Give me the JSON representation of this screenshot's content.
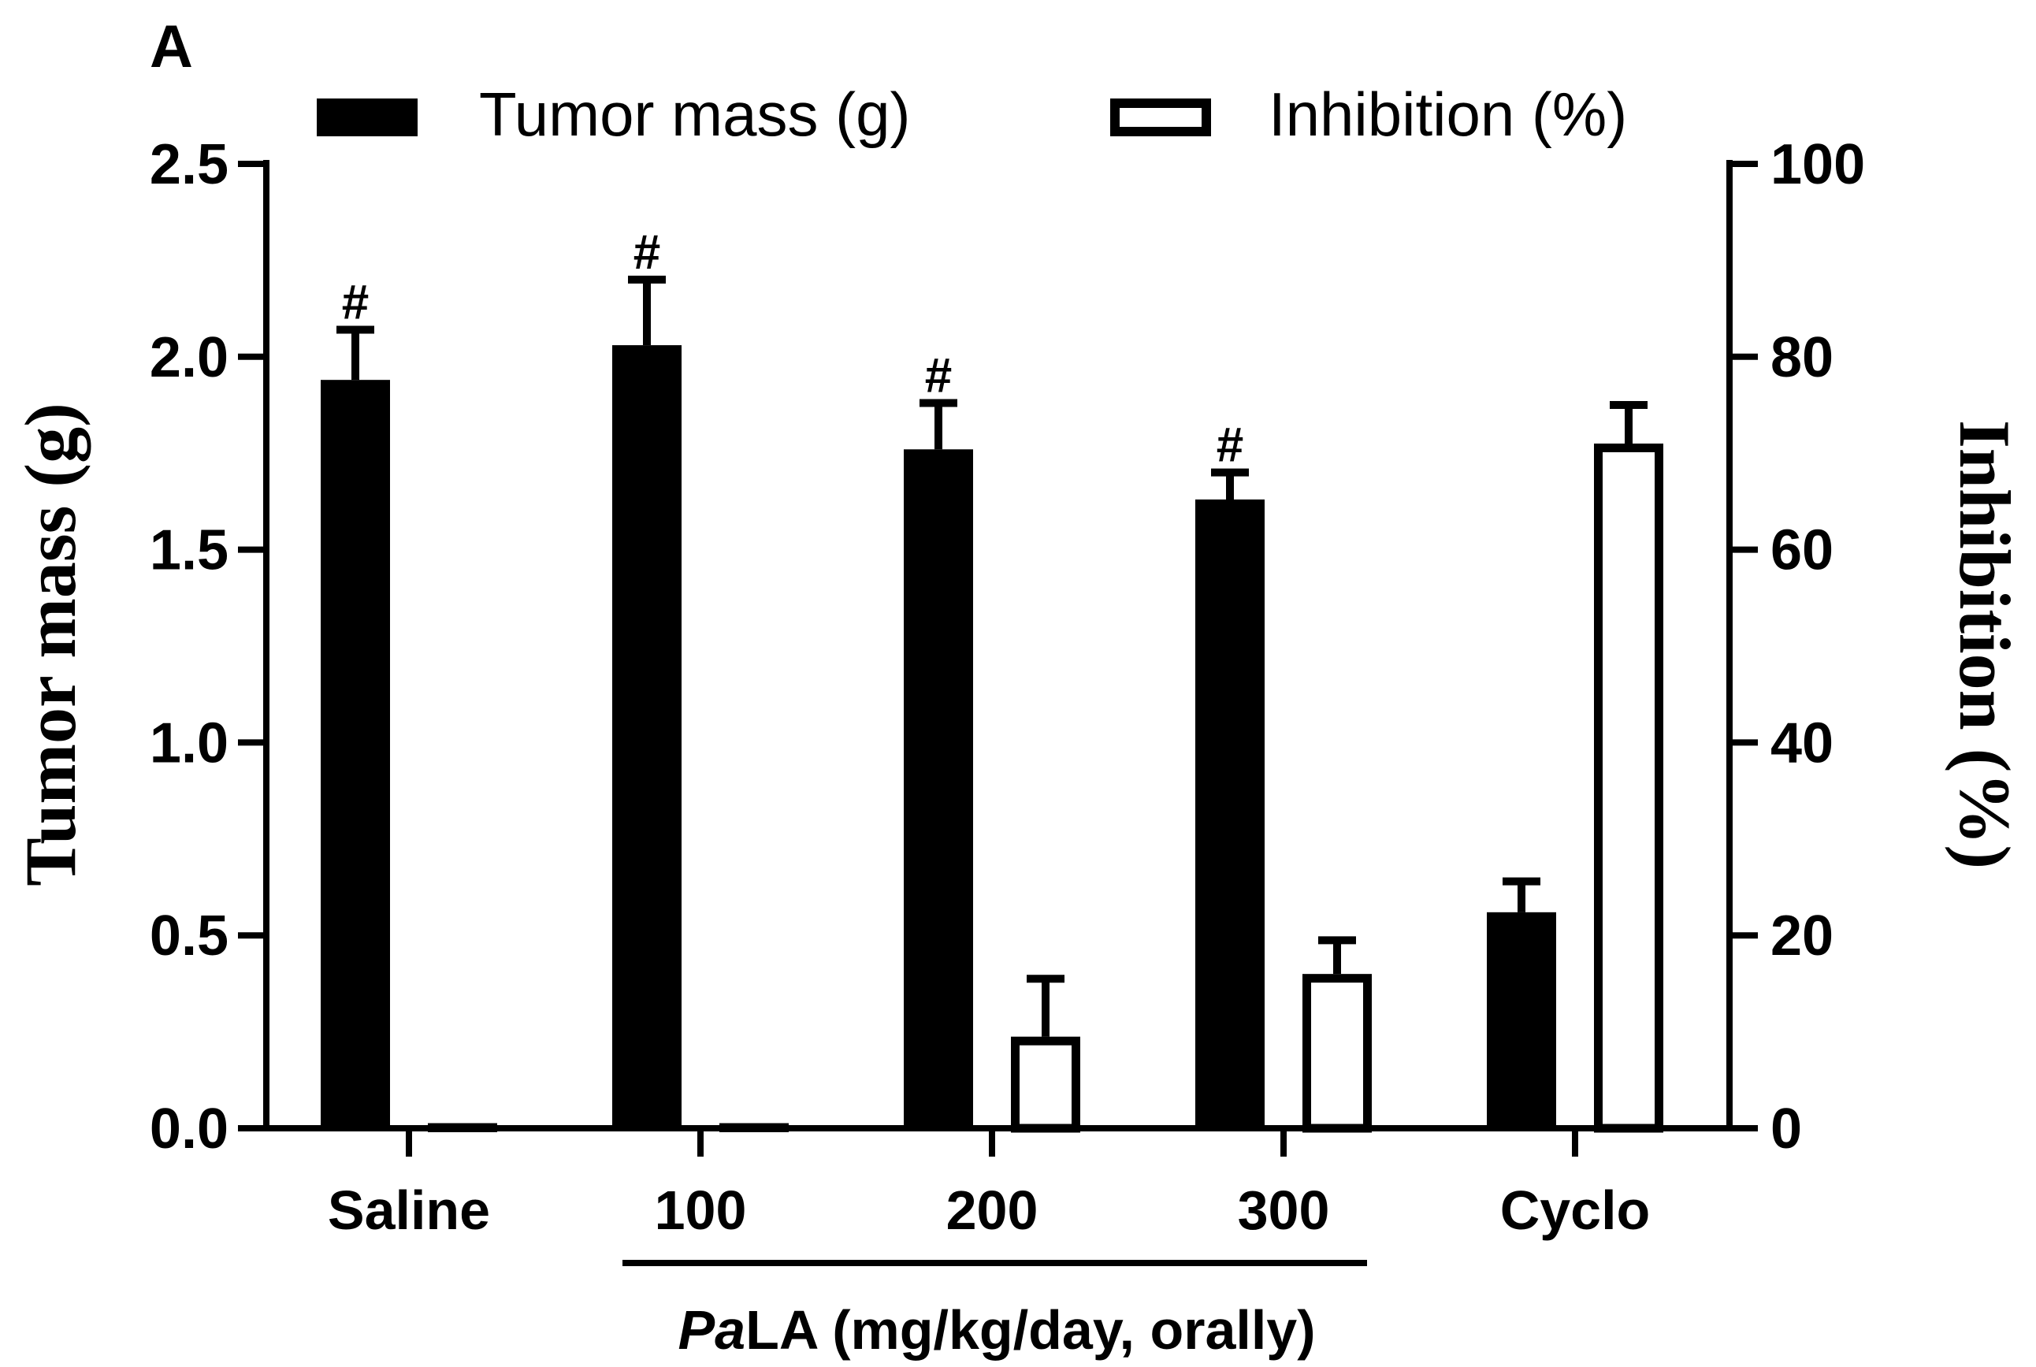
{
  "panel_label": "A",
  "chart_data": {
    "type": "bar",
    "categories": [
      "Saline",
      "100",
      "200",
      "300",
      "Cyclo"
    ],
    "series": [
      {
        "name": "Tumor mass (g)",
        "axis": "left",
        "fill": "#000000",
        "values": [
          1.94,
          2.03,
          1.76,
          1.63,
          0.56
        ],
        "errors": [
          0.13,
          0.17,
          0.12,
          0.07,
          0.08
        ],
        "markers": [
          "#",
          "#",
          "#",
          "#",
          ""
        ]
      },
      {
        "name": "Inhibition (%)",
        "axis": "right",
        "fill": "#ffffff",
        "values": [
          0,
          0.3,
          9.5,
          16,
          71
        ],
        "errors": [
          0,
          0,
          6,
          3.5,
          4
        ]
      }
    ],
    "y_left": {
      "label": "Tumor mass  (g)",
      "range": [
        0,
        2.5
      ],
      "ticks": [
        "0.0",
        "0.5",
        "1.0",
        "1.5",
        "2.0",
        "2.5"
      ],
      "tick_values": [
        0,
        0.5,
        1.0,
        1.5,
        2.0,
        2.5
      ]
    },
    "y_right": {
      "label": "Inhibition (%)",
      "range": [
        0,
        100
      ],
      "ticks": [
        "0",
        "20",
        "40",
        "60",
        "80",
        "100"
      ],
      "tick_values": [
        0,
        20,
        40,
        60,
        80,
        100
      ]
    },
    "group_label_prefix": "Pa",
    "group_label_suffix": "LA (mg/kg/day, orally)",
    "legend_position": "top"
  }
}
